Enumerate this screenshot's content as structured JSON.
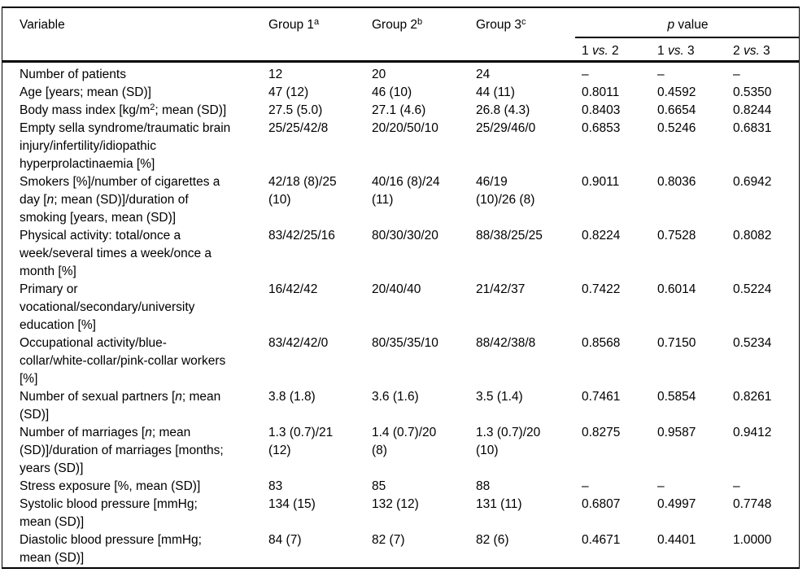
{
  "colors": {
    "text": "#000000",
    "background": "#ffffff",
    "rule": "#000000"
  },
  "table": {
    "header": {
      "variable": "Variable",
      "group1": [
        {
          "t": "Group 1"
        },
        {
          "t": "a",
          "sup": true
        }
      ],
      "group2": [
        {
          "t": "Group 2"
        },
        {
          "t": "b",
          "sup": true
        }
      ],
      "group3": [
        {
          "t": "Group 3"
        },
        {
          "t": "c",
          "sup": true
        }
      ],
      "p_value": [
        {
          "t": "p",
          "i": true
        },
        {
          "t": " value"
        }
      ],
      "p_subcols": [
        [
          {
            "t": "1 "
          },
          {
            "t": "vs.",
            "i": true
          },
          {
            "t": " 2"
          }
        ],
        [
          {
            "t": "1 "
          },
          {
            "t": "vs.",
            "i": true
          },
          {
            "t": " 3"
          }
        ],
        [
          {
            "t": "2 "
          },
          {
            "t": "vs.",
            "i": true
          },
          {
            "t": " 3"
          }
        ]
      ]
    },
    "rows": [
      {
        "label": "Number of patients",
        "values": [
          "12",
          "20",
          "24"
        ],
        "p": [
          "–",
          "–",
          "–"
        ]
      },
      {
        "label": "Age [years; mean (SD)]",
        "values": [
          "47 (12)",
          "46 (10)",
          "44 (11)"
        ],
        "p": [
          "0.8011",
          "0.4592",
          "0.5350"
        ]
      },
      {
        "label": [
          {
            "t": "Body mass index [kg/m"
          },
          {
            "t": "2",
            "sup": true
          },
          {
            "t": "; mean (SD)]"
          }
        ],
        "values": [
          "27.5 (5.0)",
          "27.1 (4.6)",
          "26.8 (4.3)"
        ],
        "p": [
          "0.8403",
          "0.6654",
          "0.8244"
        ]
      },
      {
        "label": "Empty sella syndrome/traumatic brain\ninjury/infertility/idiopathic\nhyperprolactinaemia [%]",
        "values": [
          "25/25/42/8",
          "20/20/50/10",
          "25/29/46/0"
        ],
        "p": [
          "0.6853",
          "0.5246",
          "0.6831"
        ]
      },
      {
        "label": [
          {
            "t": "Smokers [%]/number of cigarettes a\nday ["
          },
          {
            "t": "n",
            "i": true
          },
          {
            "t": "; mean (SD)]/duration of\nsmoking [years, mean (SD)]"
          }
        ],
        "values": [
          "42/18 (8)/25\n(10)",
          "40/16 (8)/24\n(11)",
          "46/19\n(10)/26 (8)"
        ],
        "p": [
          "0.9011",
          "0.8036",
          "0.6942"
        ]
      },
      {
        "label": "Physical activity: total/once a\nweek/several times a week/once a\nmonth [%]",
        "values": [
          "83/42/25/16",
          "80/30/30/20",
          "88/38/25/25"
        ],
        "p": [
          "0.8224",
          "0.7528",
          "0.8082"
        ]
      },
      {
        "label": "Primary or\nvocational/secondary/university\neducation [%]",
        "values": [
          "16/42/42",
          "20/40/40",
          "21/42/37"
        ],
        "p": [
          "0.7422",
          "0.6014",
          "0.5224"
        ]
      },
      {
        "label": "Occupational activity/blue-\ncollar/white-collar/pink-collar workers\n[%]",
        "values": [
          "83/42/42/0",
          "80/35/35/10",
          "88/42/38/8"
        ],
        "p": [
          "0.8568",
          "0.7150",
          "0.5234"
        ]
      },
      {
        "label": [
          {
            "t": "Number of sexual partners ["
          },
          {
            "t": "n",
            "i": true
          },
          {
            "t": "; mean\n(SD)]"
          }
        ],
        "values": [
          "3.8 (1.8)",
          "3.6 (1.6)",
          "3.5 (1.4)"
        ],
        "p": [
          "0.7461",
          "0.5854",
          "0.8261"
        ]
      },
      {
        "label": [
          {
            "t": "Number of marriages ["
          },
          {
            "t": "n",
            "i": true
          },
          {
            "t": "; mean\n(SD)]/duration of marriages [months;\nyears (SD)]"
          }
        ],
        "values": [
          "1.3 (0.7)/21\n(12)",
          "1.4 (0.7)/20\n(8)",
          "1.3 (0.7)/20\n(10)"
        ],
        "p": [
          "0.8275",
          "0.9587",
          "0.9412"
        ]
      },
      {
        "label": "Stress exposure [%, mean (SD)]",
        "values": [
          "83",
          "85",
          "88"
        ],
        "p": [
          "–",
          "–",
          "–"
        ]
      },
      {
        "label": "Systolic blood pressure [mmHg;\nmean (SD)]",
        "values": [
          "134 (15)",
          "132 (12)",
          "131 (11)"
        ],
        "p": [
          "0.6807",
          "0.4997",
          "0.7748"
        ]
      },
      {
        "label": "Diastolic blood pressure [mmHg;\nmean (SD)]",
        "values": [
          "84 (7)",
          "82 (7)",
          "82 (6)"
        ],
        "p": [
          "0.4671",
          "0.4401",
          "1.0000"
        ]
      }
    ]
  }
}
